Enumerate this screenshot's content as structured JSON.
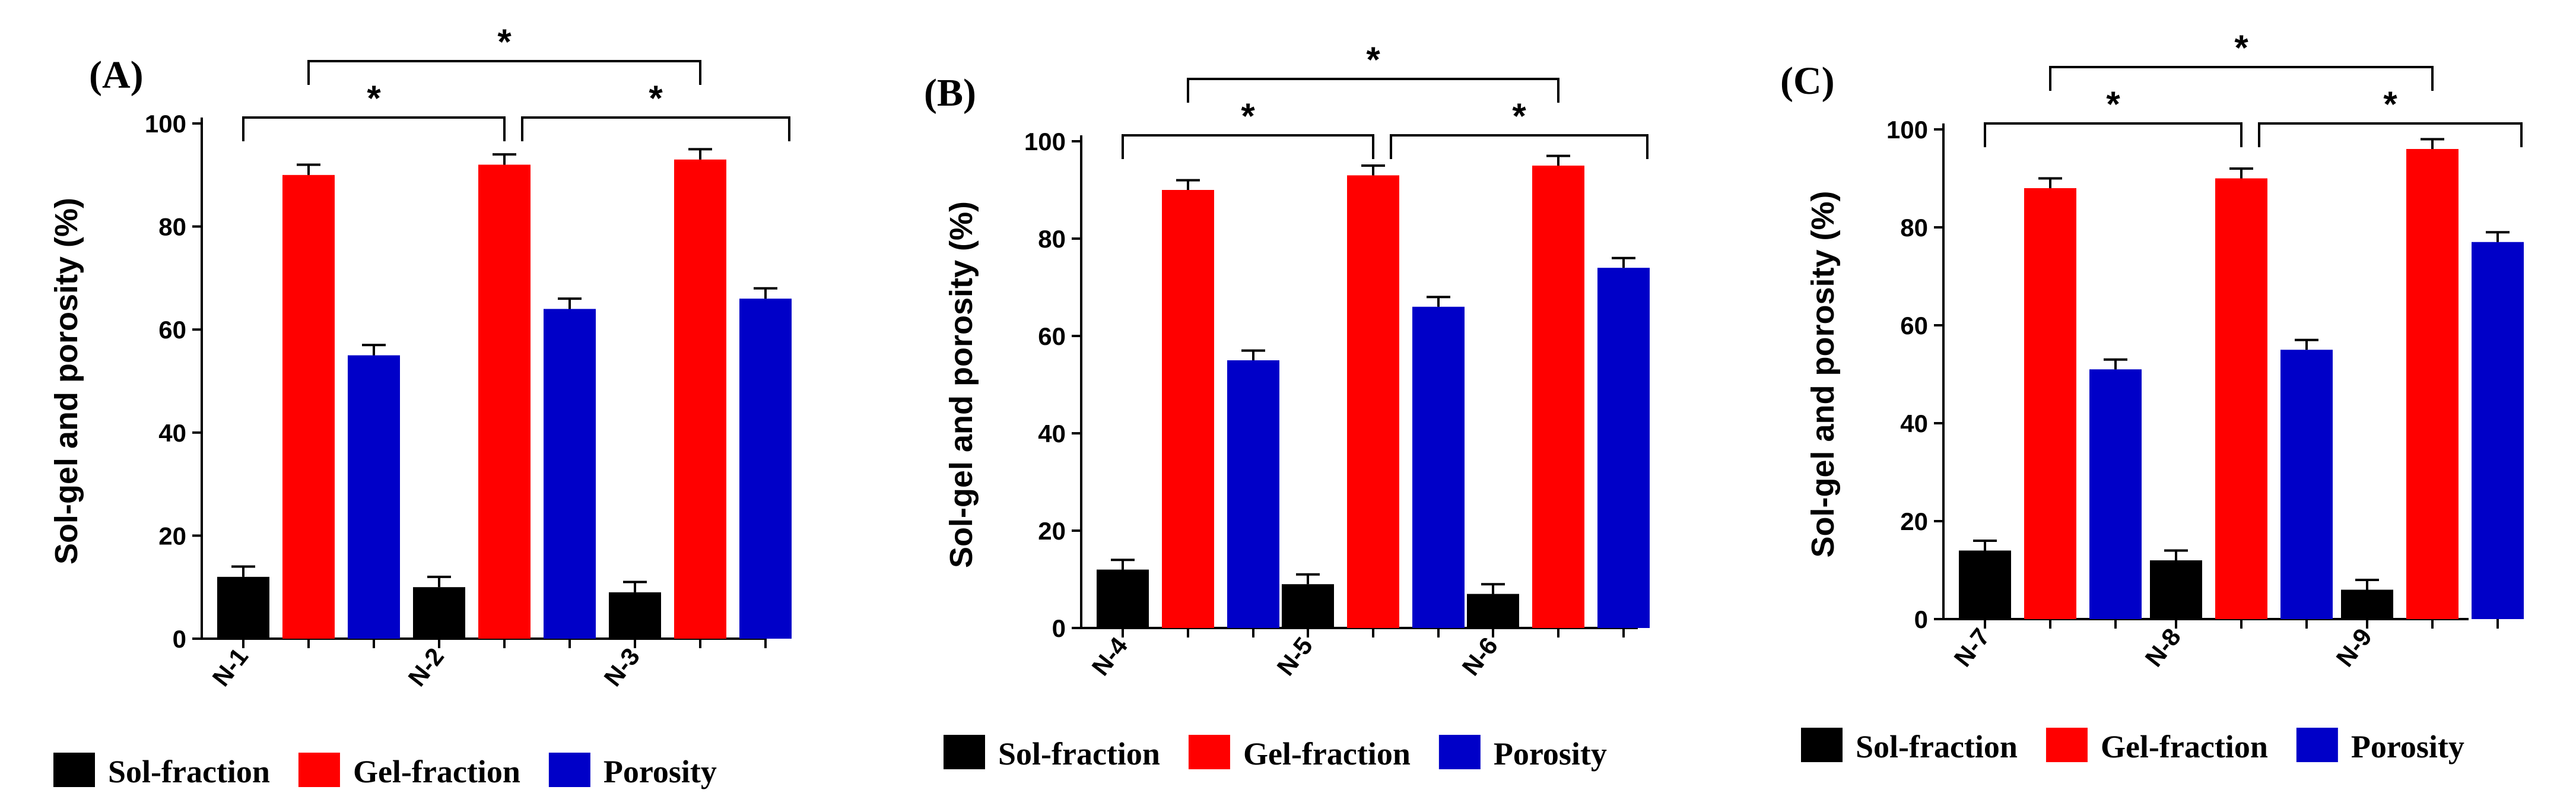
{
  "chart_data": [
    {
      "type": "bar",
      "panel": "(A)",
      "ylabel": "Sol-gel and porosity (%)",
      "xlabel": "",
      "ylim": [
        0,
        100
      ],
      "yticks": [
        "0",
        "20",
        "40",
        "60",
        "80",
        "100"
      ],
      "categories": [
        "N-1",
        "N-2",
        "N-3"
      ],
      "series": [
        {
          "name": "Sol-fraction",
          "color": "#000000",
          "values": [
            12,
            10,
            9
          ],
          "errors": [
            2,
            2,
            2
          ]
        },
        {
          "name": "Gel-fraction",
          "color": "#ff0000",
          "values": [
            90,
            92,
            93
          ],
          "errors": [
            2,
            2,
            2
          ]
        },
        {
          "name": "Porosity",
          "color": "#0000c8",
          "values": [
            55,
            64,
            66
          ],
          "errors": [
            2,
            2,
            2
          ]
        }
      ],
      "significance": [
        {
          "from": 0,
          "to": 1,
          "level": 1,
          "label": "*"
        },
        {
          "from": 1,
          "to": 2,
          "level": 1,
          "label": "*"
        },
        {
          "from": 0.5,
          "to": 1.5,
          "level": 2,
          "label": "*"
        }
      ]
    },
    {
      "type": "bar",
      "panel": "(B)",
      "ylabel": "Sol-gel and porosity (%)",
      "xlabel": "",
      "ylim": [
        0,
        100
      ],
      "yticks": [
        "0",
        "20",
        "40",
        "60",
        "80",
        "100"
      ],
      "categories": [
        "N-4",
        "N-5",
        "N-6"
      ],
      "series": [
        {
          "name": "Sol-fraction",
          "color": "#000000",
          "values": [
            12,
            9,
            7
          ],
          "errors": [
            2,
            2,
            2
          ]
        },
        {
          "name": "Gel-fraction",
          "color": "#ff0000",
          "values": [
            90,
            93,
            95
          ],
          "errors": [
            2,
            2,
            2
          ]
        },
        {
          "name": "Porosity",
          "color": "#0000c8",
          "values": [
            55,
            66,
            74
          ],
          "errors": [
            2,
            2,
            2
          ]
        }
      ],
      "significance": [
        {
          "from": 0,
          "to": 1,
          "level": 1,
          "label": "*"
        },
        {
          "from": 1,
          "to": 2,
          "level": 1,
          "label": "*"
        },
        {
          "from": 0.5,
          "to": 1.5,
          "level": 2,
          "label": "*"
        }
      ]
    },
    {
      "type": "bar",
      "panel": "(C)",
      "ylabel": "Sol-gel and porosity (%)",
      "xlabel": "",
      "ylim": [
        0,
        100
      ],
      "yticks": [
        "0",
        "20",
        "40",
        "60",
        "80",
        "100"
      ],
      "categories": [
        "N-7",
        "N-8",
        "N-9"
      ],
      "series": [
        {
          "name": "Sol-fraction",
          "color": "#000000",
          "values": [
            14,
            12,
            6
          ],
          "errors": [
            2,
            2,
            2
          ]
        },
        {
          "name": "Gel-fraction",
          "color": "#ff0000",
          "values": [
            88,
            90,
            96
          ],
          "errors": [
            2,
            2,
            2
          ]
        },
        {
          "name": "Porosity",
          "color": "#0000c8",
          "values": [
            51,
            55,
            77
          ],
          "errors": [
            2,
            2,
            2
          ]
        }
      ],
      "significance": [
        {
          "from": 0,
          "to": 1,
          "level": 1,
          "label": "*"
        },
        {
          "from": 1,
          "to": 2,
          "level": 1,
          "label": "*"
        },
        {
          "from": 0.5,
          "to": 1.5,
          "level": 2,
          "label": "*"
        }
      ]
    }
  ]
}
